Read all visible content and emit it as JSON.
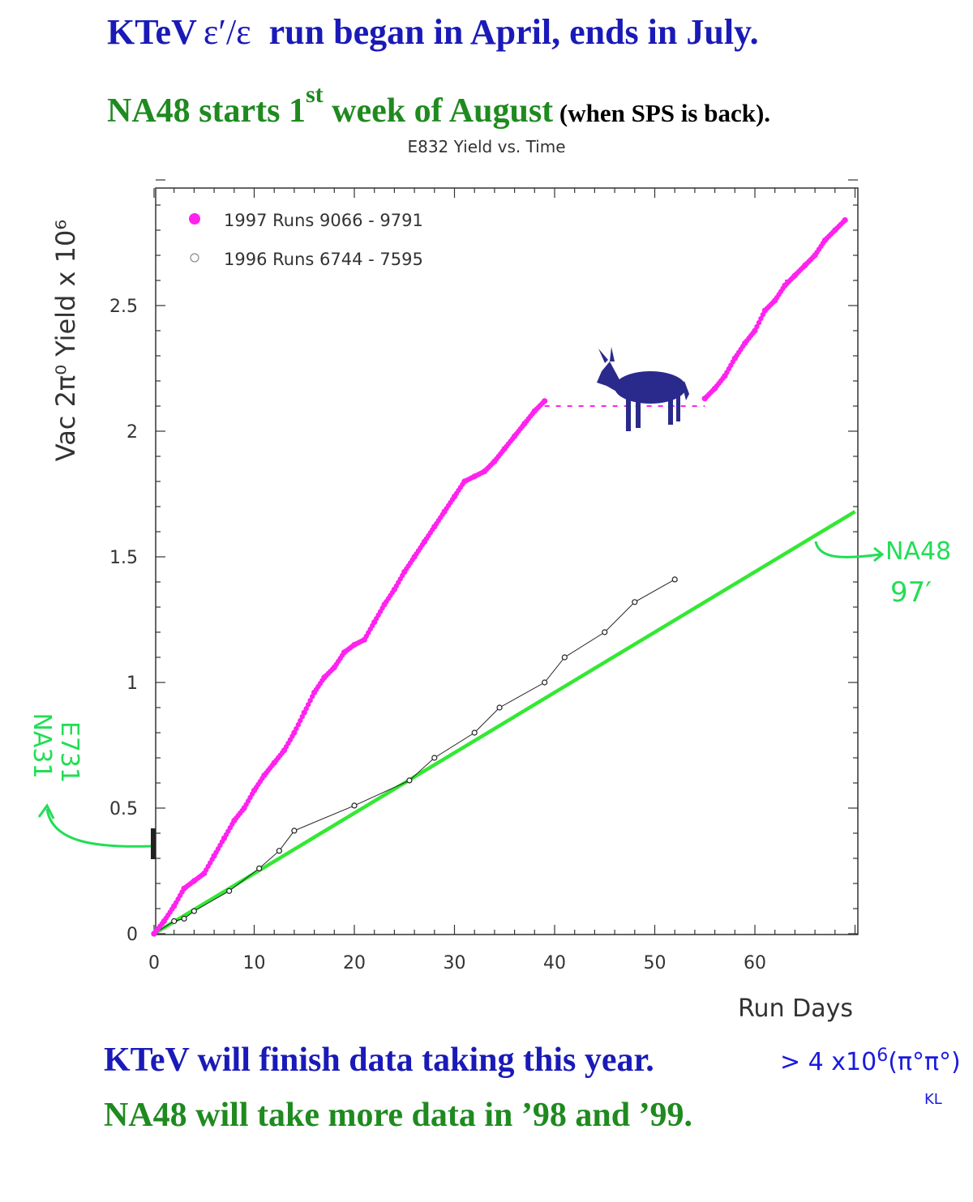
{
  "header": {
    "line1_prefix": "KTeV",
    "line1_symbol": "ε′/ε",
    "line1_suffix": "run began in April, ends in July.",
    "line2_a": "NA48 starts  1",
    "line2_sup": "st",
    "line2_b": " week of August",
    "line2_c": " (when SPS is back)."
  },
  "footer": {
    "line1": "KTeV will finish data taking this year.",
    "line2": "NA48 will take more data in ’98 and ’99."
  },
  "annotations": {
    "kaon_count_a": "> 4 x10",
    "kaon_count_sup": "6",
    "kaon_count_b": "(π°π°)",
    "kaon_sub": "KL",
    "na48_a": "NA48",
    "na48_b": "97′",
    "na31_a": "NA31",
    "na31_b": "E731"
  },
  "colors": {
    "series_1997": "#ff22ee",
    "series_1996": "#222222",
    "na48_line": "#33e833",
    "header_blue": "#1a1ab8",
    "header_green": "#1f8a1f",
    "handwritten_green": "#22dd55",
    "handwritten_blue": "#1a1ae0",
    "donkey": "#2a2a8c"
  },
  "chart_data": {
    "type": "line",
    "title": "E832 Yield vs. Time",
    "xlabel": "Run Days",
    "ylabel": "Vac 2π⁰ Yield x 10⁶",
    "xlim": [
      0,
      70
    ],
    "ylim": [
      0,
      3.0
    ],
    "x_ticks": [
      "0",
      "10",
      "20",
      "30",
      "40",
      "50",
      "60"
    ],
    "y_ticks": [
      "0",
      "0.5",
      "1",
      "1.5",
      "2",
      "2.5"
    ],
    "legend_position": "top-left",
    "icon": "donkey-icon",
    "series": [
      {
        "name": "1997 Runs 9066 - 9791",
        "marker": "filled-circle",
        "x": [
          0,
          1,
          2,
          3,
          4,
          5,
          6,
          7,
          8,
          9,
          10,
          11,
          12,
          13,
          14,
          15,
          16,
          17,
          18,
          19,
          20,
          21,
          22,
          23,
          24,
          25,
          26,
          27,
          28,
          29,
          30,
          31,
          32,
          33,
          34,
          35,
          36,
          37,
          38,
          39,
          55,
          56,
          57,
          58,
          59,
          60,
          61,
          62,
          63,
          64,
          65,
          66,
          67,
          68,
          69
        ],
        "y": [
          0.0,
          0.05,
          0.11,
          0.18,
          0.21,
          0.24,
          0.31,
          0.38,
          0.45,
          0.5,
          0.57,
          0.63,
          0.68,
          0.73,
          0.8,
          0.88,
          0.96,
          1.02,
          1.06,
          1.12,
          1.15,
          1.17,
          1.24,
          1.31,
          1.37,
          1.44,
          1.5,
          1.56,
          1.62,
          1.68,
          1.74,
          1.8,
          1.82,
          1.84,
          1.88,
          1.93,
          1.98,
          2.03,
          2.08,
          2.12,
          2.13,
          2.17,
          2.22,
          2.29,
          2.35,
          2.4,
          2.48,
          2.52,
          2.58,
          2.62,
          2.66,
          2.7,
          2.76,
          2.8,
          2.84
        ]
      },
      {
        "name": "1996 Runs 6744 - 7595",
        "marker": "open-circle",
        "x": [
          0,
          2,
          3,
          4,
          7.5,
          10.5,
          12.5,
          14,
          20,
          25.5,
          28,
          32,
          34.5,
          39,
          41,
          45,
          48,
          52
        ],
        "y": [
          0.0,
          0.05,
          0.06,
          0.09,
          0.17,
          0.26,
          0.33,
          0.41,
          0.51,
          0.61,
          0.7,
          0.8,
          0.9,
          1.0,
          1.1,
          1.2,
          1.32,
          1.41
        ]
      },
      {
        "name": "NA48",
        "marker": "none",
        "x": [
          0,
          70
        ],
        "y": [
          0.0,
          1.68
        ]
      }
    ],
    "gap_dashes": [
      {
        "x": [
          39,
          55
        ],
        "y": [
          2.1,
          2.1
        ]
      },
      {
        "x": [
          63,
          64
        ],
        "y": [
          2.6,
          2.6
        ]
      }
    ]
  }
}
